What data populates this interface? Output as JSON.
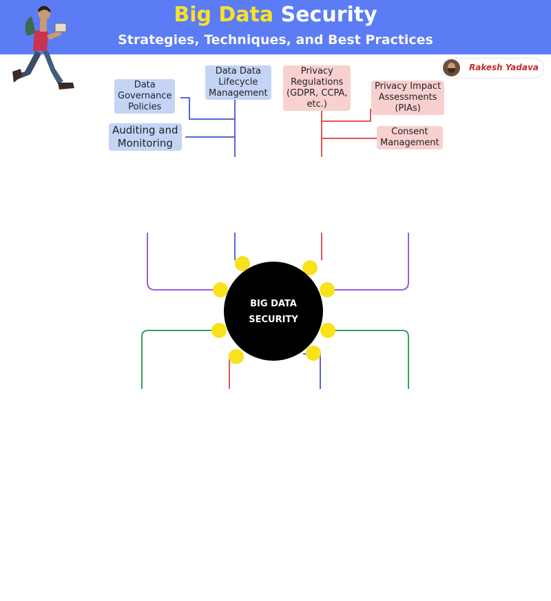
{
  "header": {
    "title_part1": "Big Data",
    "title_part2": "Security",
    "subtitle": "Strategies, Techniques, and Best Practices"
  },
  "author": {
    "name": "Rakesh Yadava"
  },
  "diagram": {
    "center_line1": "BIG DATA",
    "center_line2": "SECURITY",
    "left_branch": {
      "n1": "Data\nGovernance\nPolicies",
      "n2": "Data Data\nLifecycle\nManagement",
      "n3": "Auditing and\nMonitoring"
    },
    "right_branch": {
      "n1": "Privacy\nRegulations\n(GDPR, CCPA,\netc.)",
      "n2": "Privacy Impact\nAssessments\n(PIAs)",
      "n3": "Consent\nManagement"
    }
  },
  "colors": {
    "banner": "#5b7cf5",
    "accent": "#f9e12a",
    "blue_branch": "#5466d8",
    "red_branch": "#e15454",
    "purple_branch": "#9b5bd8",
    "green_branch": "#37a05c",
    "node_dot": "#f7e21c"
  }
}
